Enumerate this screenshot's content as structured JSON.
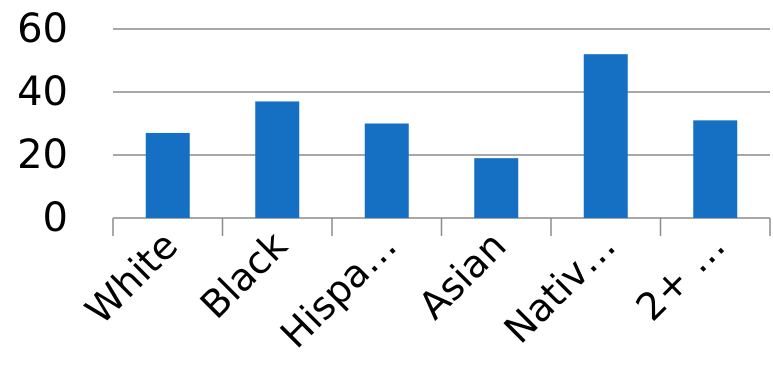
{
  "chart_data": {
    "type": "bar",
    "categories": [
      "White",
      "Black",
      "Hispa…",
      "Asian",
      "Nativ…",
      "2+ …"
    ],
    "values": [
      27,
      37,
      30,
      19,
      52,
      31
    ],
    "ylim": [
      0,
      60
    ],
    "yticks": [
      "0",
      "20",
      "40",
      "60"
    ],
    "grid": true,
    "legend": "none",
    "bar_color": "#1570C4",
    "grid_color": "#8C8C8C"
  }
}
